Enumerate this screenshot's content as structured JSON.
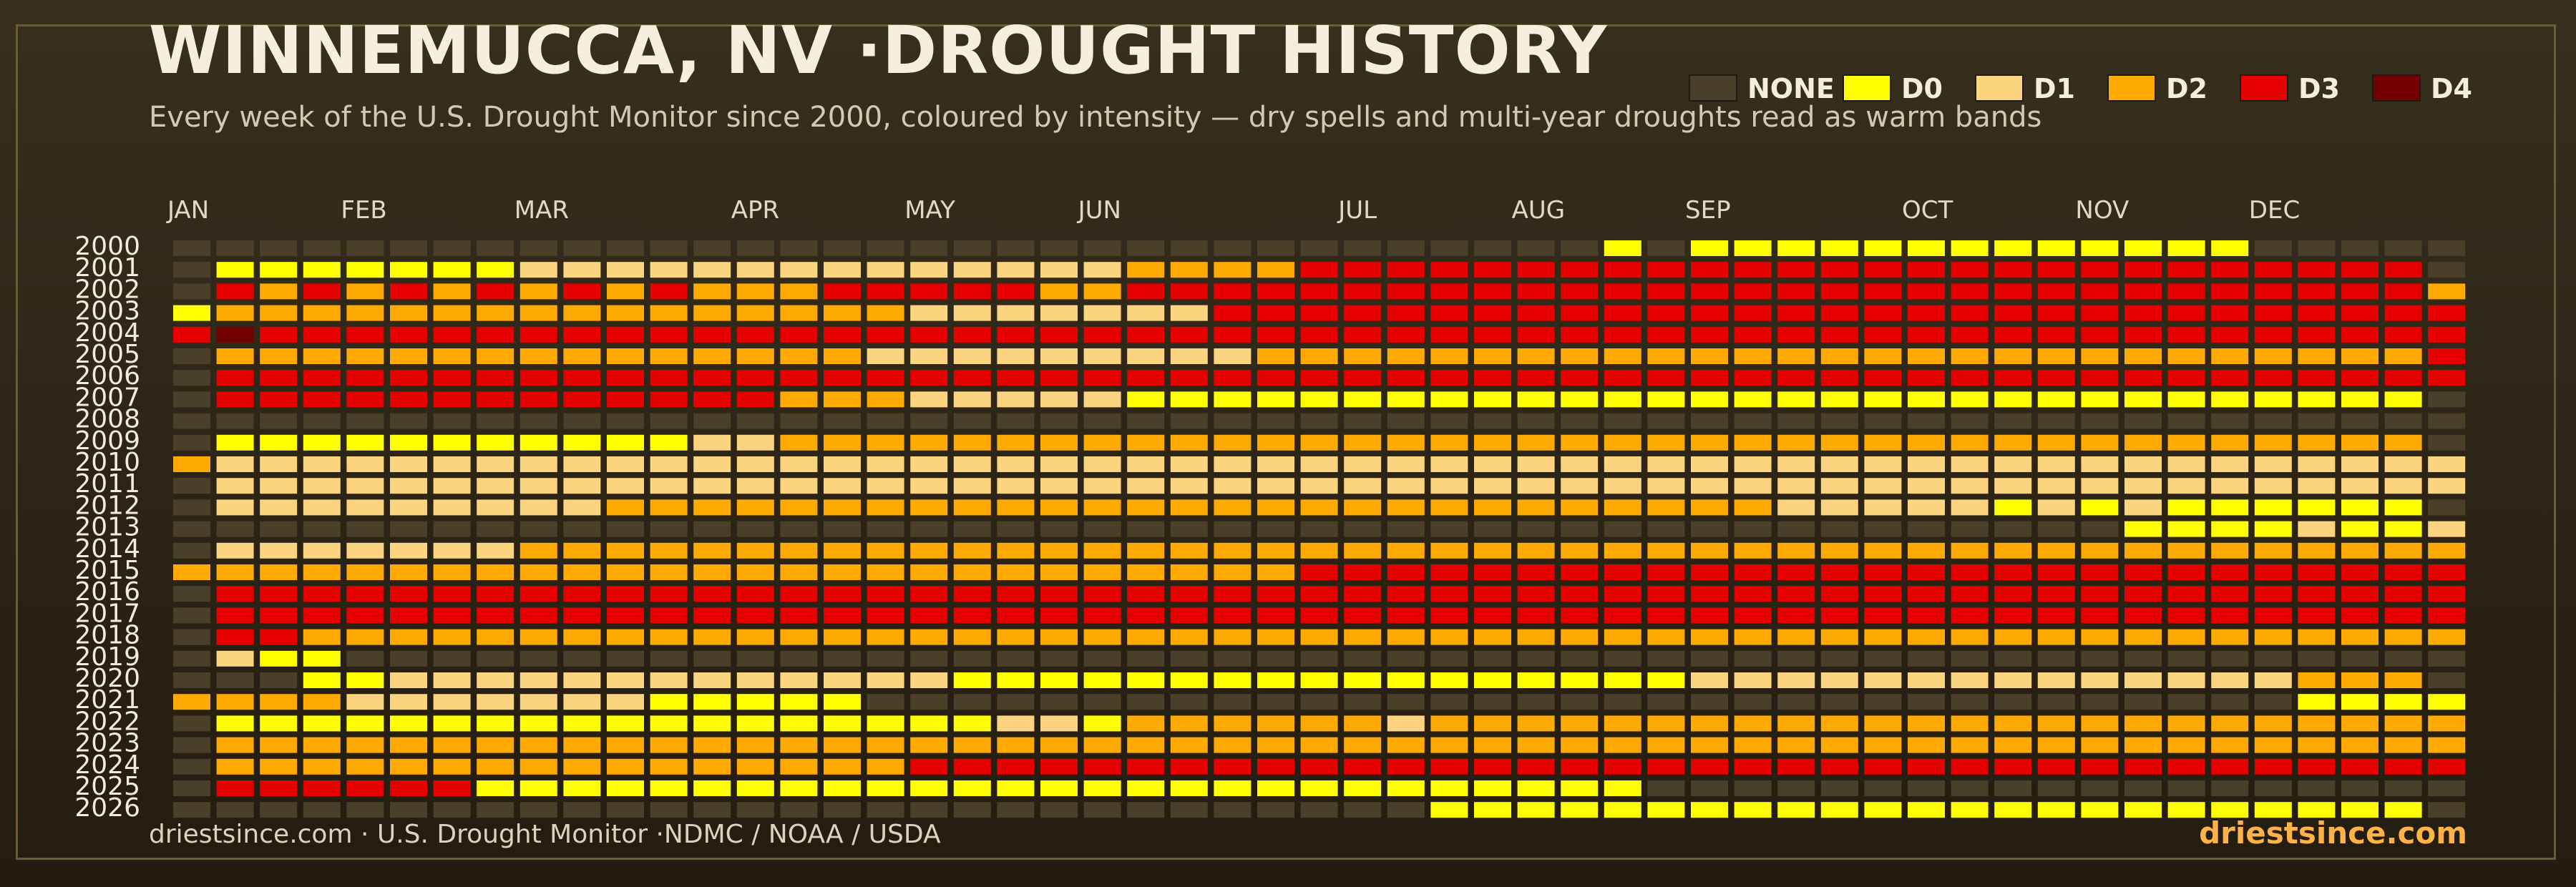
{
  "header": {
    "title": "WINNEMUCCA, NV ·DROUGHT HISTORY",
    "subtitle": "Every week of the U.S. Drought Monitor since 2000, coloured by intensity — dry spells and multi-year droughts read as warm bands"
  },
  "legend": [
    {
      "label": "NONE",
      "color": "#4a3f29"
    },
    {
      "label": "D0",
      "color": "#ffff00"
    },
    {
      "label": "D1",
      "color": "#fcd37f"
    },
    {
      "label": "D2",
      "color": "#ffaa00"
    },
    {
      "label": "D3",
      "color": "#e60000"
    },
    {
      "label": "D4",
      "color": "#730000"
    }
  ],
  "footer": {
    "source": "driestsince.com  · U.S. Drought Monitor ·NDMC / NOAA / USDA",
    "brand": "driestsince.com"
  },
  "chart_data": {
    "type": "heatmap",
    "x_labels": [
      "JAN",
      "FEB",
      "MAR",
      "APR",
      "MAY",
      "JUN",
      "JUL",
      "AUG",
      "SEP",
      "OCT",
      "NOV",
      "DEC"
    ],
    "x_label_weeks": [
      0,
      4,
      8,
      13,
      17,
      21,
      27,
      31,
      35,
      40,
      44,
      48
    ],
    "weeks_per_year": 53,
    "y_labels": [
      "2000",
      "2001",
      "2002",
      "2003",
      "2004",
      "2005",
      "2006",
      "2007",
      "2008",
      "2009",
      "2010",
      "2011",
      "2012",
      "2013",
      "2014",
      "2015",
      "2016",
      "2017",
      "2018",
      "2019",
      "2020",
      "2021",
      "2022",
      "2023",
      "2024",
      "2025",
      "2026"
    ],
    "categories": [
      "NONE",
      "D0",
      "D1",
      "D2",
      "D3",
      "D4"
    ],
    "encoding": "0=NONE 1=D0 2=D1 3=D2 4=D3 5=D4",
    "rows": [
      "00000000000000000000000000000000010111111111111100000",
      "01111111222222222222223333444444444444444444444444440",
      "04343434343433344444334444444444444444444444444444443",
      "13333333333333333222222244444444444444444444444444444",
      "45444444444444444444444444444444444444444444444444444",
      "03333333333333332222222223333333333333333333333333334",
      "04444444444444444444444444444444444444444444444444444",
      "04444444444444333222221111111111111111111111111111110",
      "00000000000000000000000000000000000000000000000000000",
      "01111111111122333333333333333333333333333333333333330",
      "32222222222222222222222222222222222222222222222222222",
      "02222222222222222222222222222222222222222222222222222",
      "02222222223333333333333333333333333332222212121111110",
      "00000000000000000000000000000000000000000000011112112",
      "02222222333333333333333333333333333333333333333333333",
      "33333333333333333333333333444444444444444444444444444",
      "04444444444444444444444444444444444444444444444444444",
      "04444444444444444444444444444444444444444444444444444",
      "04433333333333333333333333333333333333333333333333333",
      "02110000000000000000000000000000000000000000000000000",
      "00011222222222222211111111111111111222222222222223330",
      "33332222222111110000000000000000000000000000000001111",
      "01111111111111111112213333332333333333333333333333333",
      "03333333333333333333333333333333333333333333333333333",
      "03333333333333333444444444444444444444444444444444444",
      "04444441111111111111111111111111110000000000000000000",
      "00000000000000000000000000000111111111111111111111110"
    ]
  }
}
